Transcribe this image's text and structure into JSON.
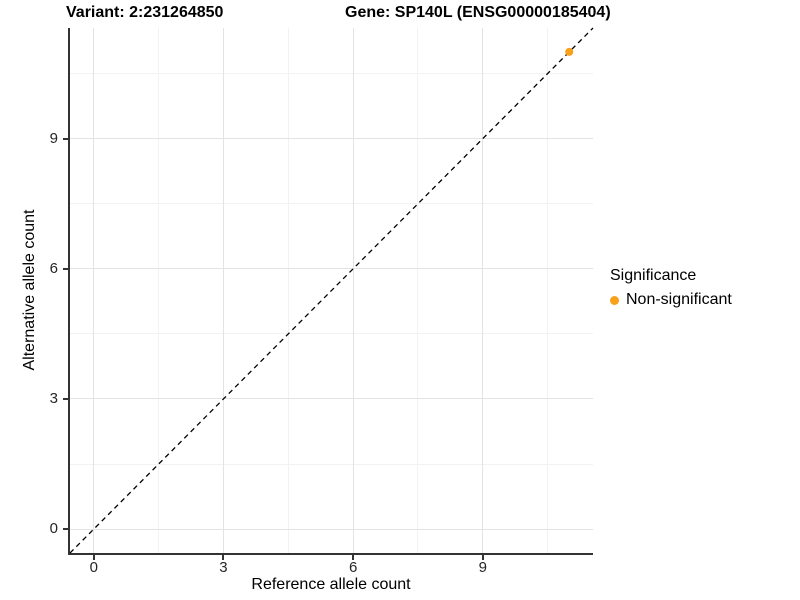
{
  "header": {
    "variant_title": "Variant: 2:231264850",
    "gene_title": "Gene: SP140L (ENSG00000185404)"
  },
  "chart_data": {
    "type": "scatter",
    "xlabel": "Reference allele count",
    "ylabel": "Alternative allele count",
    "xlim": [
      -0.55,
      11.55
    ],
    "ylim": [
      -0.55,
      11.55
    ],
    "x_ticks": [
      0,
      3,
      6,
      9
    ],
    "y_ticks": [
      0,
      3,
      6,
      9
    ],
    "x_minor": [
      1.5,
      4.5,
      7.5,
      10.5
    ],
    "y_minor": [
      1.5,
      4.5,
      7.5,
      10.5
    ],
    "grid": true,
    "legend_position": "right",
    "identity_line": {
      "slope": 1,
      "intercept": 0,
      "style": "dashed",
      "color": "#000000"
    },
    "series": [
      {
        "name": "Non-significant",
        "color": "#F9A11B",
        "points": [
          {
            "x": 11,
            "y": 11
          }
        ]
      }
    ]
  },
  "legend": {
    "title": "Significance",
    "items": [
      {
        "label": "Non-significant",
        "color": "#F9A11B",
        "marker": "circle"
      }
    ]
  },
  "colors": {
    "axis_line": "#333333",
    "grid_major": "#e3e3e3",
    "grid_minor": "#f2f2f2",
    "tick_text": "#262626"
  }
}
